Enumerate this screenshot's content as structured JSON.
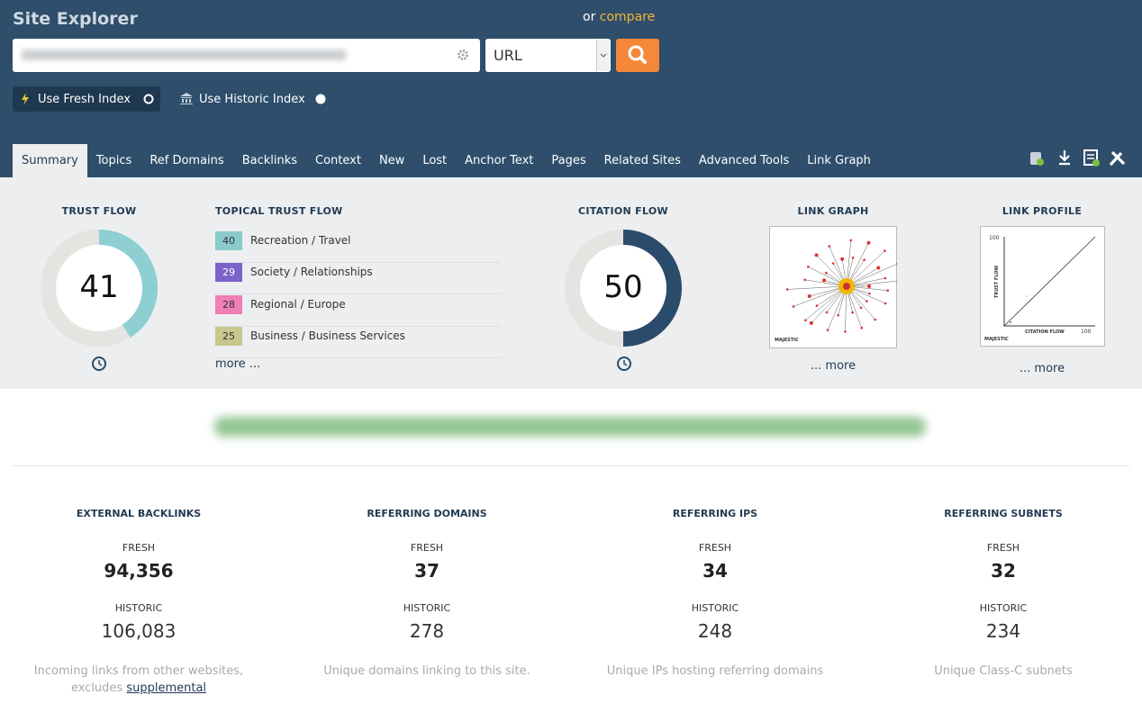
{
  "header": {
    "title": "Site Explorer",
    "compare_prefix": "or",
    "compare_link": "compare",
    "search_type": "URL",
    "fresh_index": "Use Fresh Index",
    "historic_index": "Use Historic Index"
  },
  "tabs": [
    "Summary",
    "Topics",
    "Ref Domains",
    "Backlinks",
    "Context",
    "New",
    "Lost",
    "Anchor Text",
    "Pages",
    "Related Sites",
    "Advanced Tools",
    "Link Graph"
  ],
  "active_tab": 0,
  "trust_flow": {
    "title": "TRUST FLOW",
    "value": 41,
    "color": "#8ecfd2"
  },
  "topical_trust_flow": {
    "title": "TOPICAL TRUST FLOW",
    "more": "more ...",
    "topics": [
      {
        "value": 40,
        "label": "Recreation / Travel",
        "color": "#8acbcb"
      },
      {
        "value": 29,
        "label": "Society / Relationships",
        "color": "#7b63c9"
      },
      {
        "value": 28,
        "label": "Regional / Europe",
        "color": "#f07fb5"
      },
      {
        "value": 25,
        "label": "Business / Business Services",
        "color": "#c9c78f"
      }
    ]
  },
  "citation_flow": {
    "title": "CITATION FLOW",
    "value": 50,
    "color": "#2b4b6a"
  },
  "link_graph": {
    "title": "LINK GRAPH",
    "logo": "MAJESTIC",
    "more": "... more"
  },
  "link_profile": {
    "title": "LINK PROFILE",
    "y_label": "TRUST FLOW",
    "x_label": "CITATION FLOW",
    "y_max": 100,
    "x_max": 100,
    "logo": "MAJESTIC",
    "more": "... more"
  },
  "stats": [
    {
      "title": "EXTERNAL BACKLINKS",
      "fresh_label": "FRESH",
      "fresh": "94,356",
      "historic_label": "HISTORIC",
      "historic": "106,083",
      "note": "Incoming links from other websites, excludes",
      "link": "supplemental"
    },
    {
      "title": "REFERRING DOMAINS",
      "fresh_label": "FRESH",
      "fresh": "37",
      "historic_label": "HISTORIC",
      "historic": "278",
      "note": "Unique domains linking to this site."
    },
    {
      "title": "REFERRING IPS",
      "fresh_label": "FRESH",
      "fresh": "34",
      "historic_label": "HISTORIC",
      "historic": "248",
      "note": "Unique IPs hosting referring domains"
    },
    {
      "title": "REFERRING SUBNETS",
      "fresh_label": "FRESH",
      "fresh": "32",
      "historic_label": "HISTORIC",
      "historic": "234",
      "note": "Unique Class-C subnets"
    }
  ]
}
